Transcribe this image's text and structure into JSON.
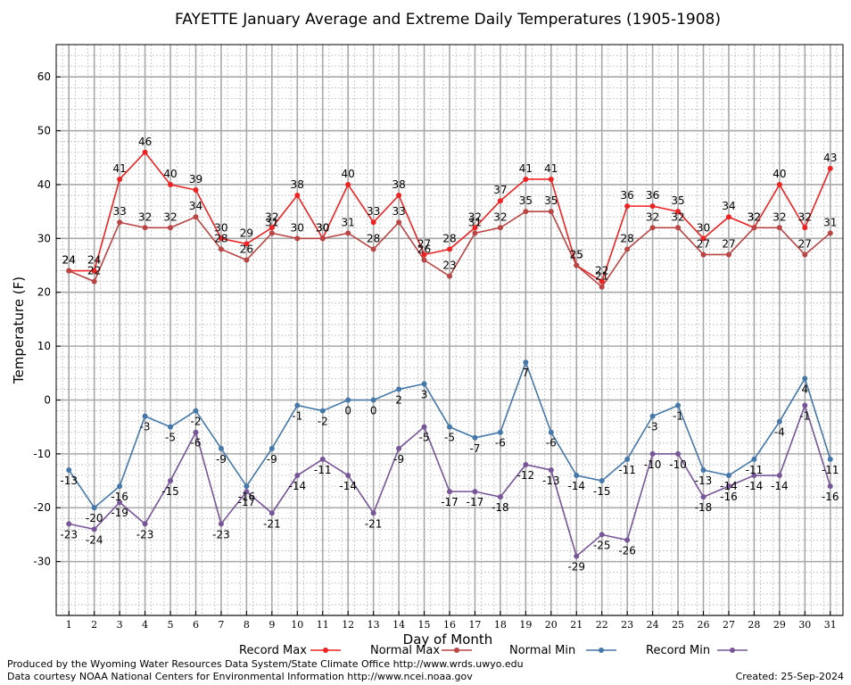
{
  "chart_data": {
    "type": "line",
    "title": "FAYETTE January Average and Extreme Daily Temperatures (1905-1908)",
    "xlabel": "Day of Month",
    "ylabel": "Temperature (F)",
    "x": [
      1,
      2,
      3,
      4,
      5,
      6,
      7,
      8,
      9,
      10,
      11,
      12,
      13,
      14,
      15,
      16,
      17,
      18,
      19,
      20,
      21,
      22,
      23,
      24,
      25,
      26,
      27,
      28,
      29,
      30,
      31
    ],
    "ylim": [
      -40,
      66
    ],
    "yticks": [
      -30,
      -20,
      -10,
      0,
      10,
      20,
      30,
      40,
      50,
      60
    ],
    "grid": true,
    "legend_position": "bottom",
    "series": [
      {
        "name": "Record Max",
        "color": "#ee2222",
        "values": [
          24,
          24,
          41,
          46,
          40,
          39,
          30,
          29,
          32,
          38,
          30,
          40,
          33,
          38,
          27,
          28,
          32,
          37,
          41,
          41,
          25,
          22,
          36,
          36,
          35,
          30,
          34,
          32,
          40,
          32,
          43
        ]
      },
      {
        "name": "Normal Max",
        "color": "#bb4444",
        "values": [
          24,
          22,
          33,
          32,
          32,
          34,
          28,
          26,
          31,
          30,
          30,
          31,
          28,
          33,
          26,
          23,
          31,
          32,
          35,
          35,
          25,
          21,
          28,
          32,
          32,
          27,
          27,
          32,
          32,
          27,
          31
        ]
      },
      {
        "name": "Normal Min",
        "color": "#4477aa",
        "values": [
          -13,
          -20,
          -16,
          -3,
          -5,
          -2,
          -9,
          -16,
          -9,
          -1,
          -2,
          0,
          0,
          2,
          3,
          -5,
          -7,
          -6,
          7,
          -6,
          -14,
          -15,
          -11,
          -3,
          -1,
          -13,
          -14,
          -11,
          -4,
          4,
          -11
        ]
      },
      {
        "name": "Record Min",
        "color": "#775599",
        "values": [
          -23,
          -24,
          -19,
          -23,
          -15,
          -6,
          -23,
          -17,
          -21,
          -14,
          -11,
          -14,
          -21,
          -9,
          -5,
          -17,
          -17,
          -18,
          -12,
          -13,
          -29,
          -25,
          -26,
          -10,
          -10,
          -18,
          -16,
          -14,
          -14,
          -1,
          -16
        ]
      }
    ]
  },
  "footer": {
    "produced": "Produced by the Wyoming Water Resources Data System/State Climate Office http://www.wrds.uwyo.edu",
    "courtesy": "Data courtesy NOAA National Centers for Environmental Information http://www.ncei.noaa.gov",
    "created": "Created:  25-Sep-2024"
  }
}
